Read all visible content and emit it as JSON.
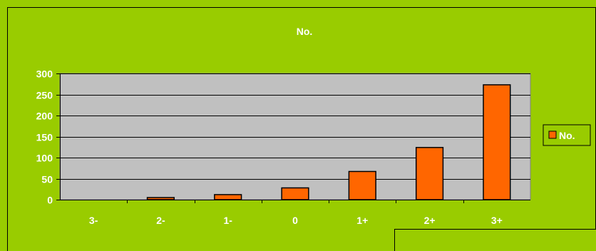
{
  "colors": {
    "background": "#99cc00",
    "plot_area": "#c0c0c0",
    "bar_fill": "#ff6600",
    "gridline": "#000000",
    "text": "#ffffff"
  },
  "chart_data": {
    "type": "bar",
    "title": "No.",
    "categories": [
      "3-",
      "2-",
      "1-",
      "0",
      "1+",
      "2+",
      "3+"
    ],
    "series": [
      {
        "name": "No.",
        "values": [
          0,
          5,
          12,
          28,
          67,
          124,
          273
        ]
      }
    ],
    "ylim": [
      0,
      300
    ],
    "yticks": [
      0,
      50,
      100,
      150,
      200,
      250,
      300
    ],
    "grid": true,
    "legend_position": "right"
  }
}
